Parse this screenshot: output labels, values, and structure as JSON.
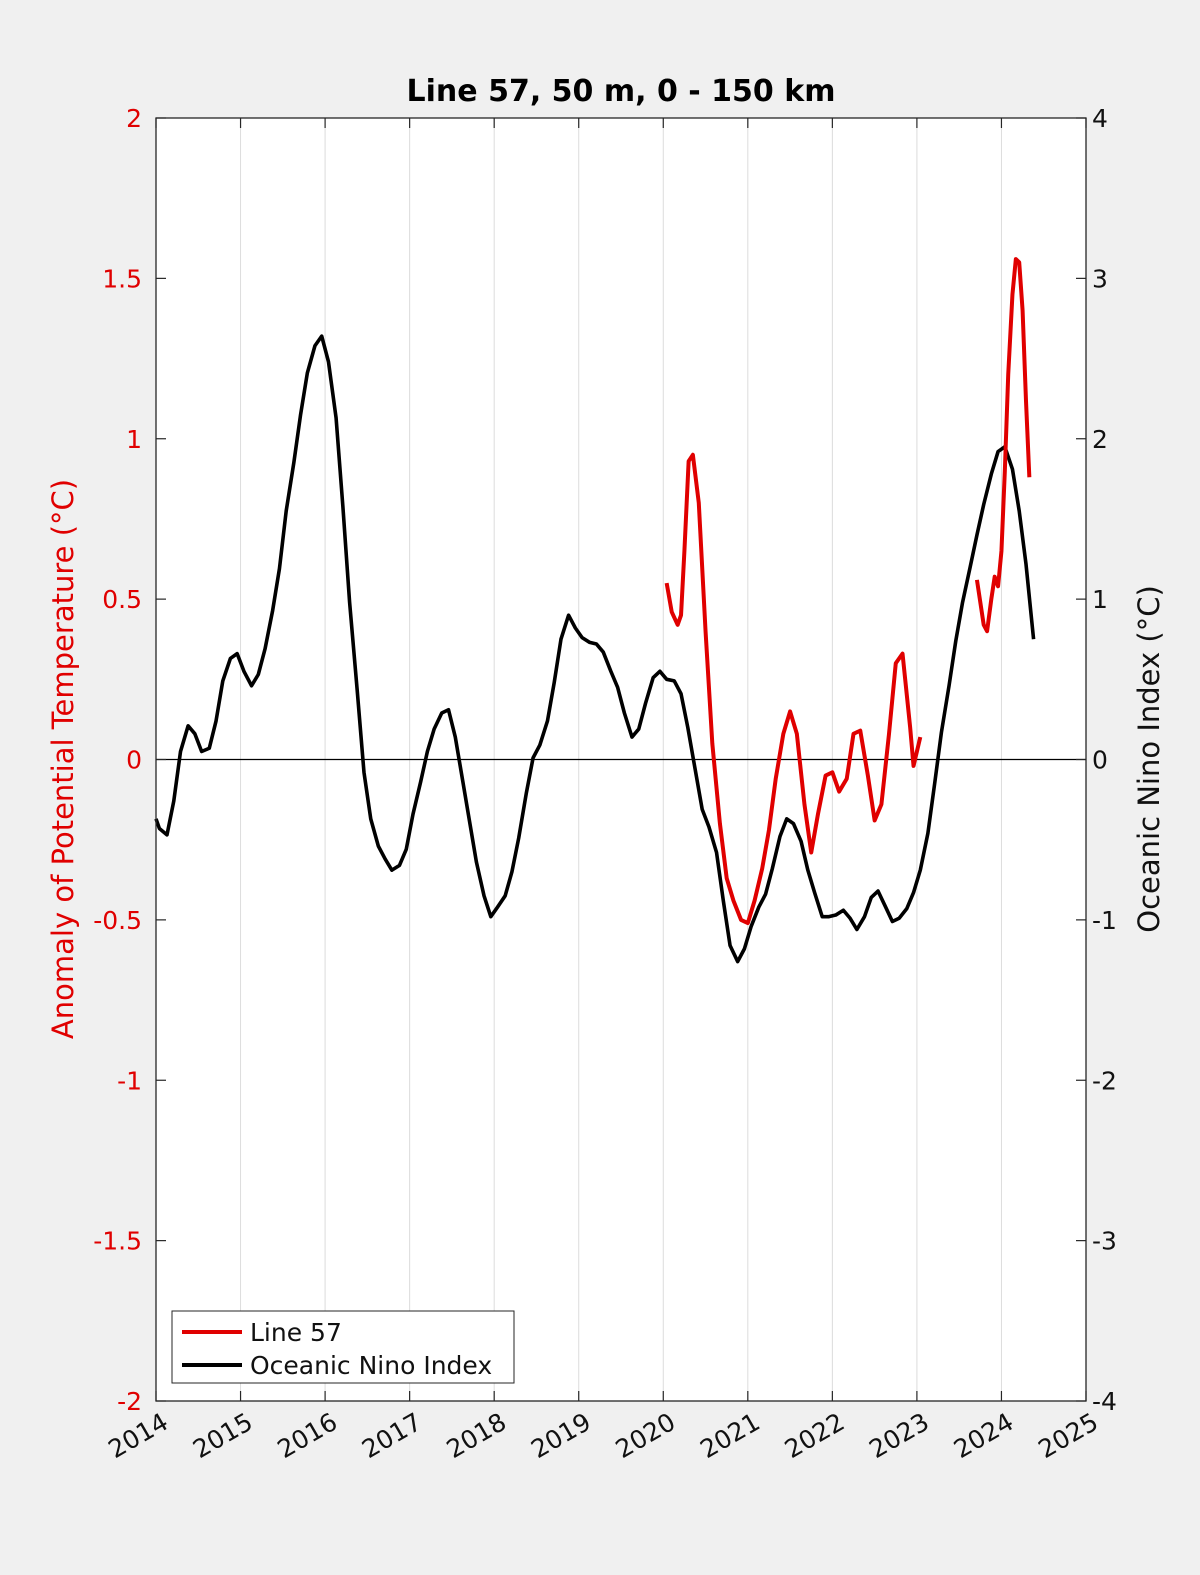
{
  "chart_data": {
    "type": "line",
    "title": "Line 57, 50 m, 0 - 150 km",
    "ylabel_left": "Anomaly of Potential Temperature (°C)",
    "ylabel_right": "Oceanic Nino Index (°C)",
    "xlim": [
      2014,
      2025
    ],
    "ylim_left": [
      -2,
      2
    ],
    "ylim_right": [
      -4,
      4
    ],
    "x_ticks": [
      "2014",
      "2015",
      "2016",
      "2017",
      "2018",
      "2019",
      "2020",
      "2021",
      "2022",
      "2023",
      "2024",
      "2025"
    ],
    "y_ticks_left": [
      "-2",
      "-1.5",
      "-1",
      "-0.5",
      "0",
      "0.5",
      "1",
      "1.5",
      "2"
    ],
    "y_ticks_right": [
      "-4",
      "-3",
      "-2",
      "-1",
      "0",
      "1",
      "2",
      "3",
      "4"
    ],
    "grid": "vertical",
    "legend_position": "bottom-left",
    "colors": {
      "line57": "#e00000",
      "oni": "#000000",
      "left_axis": "#e00000"
    },
    "series": [
      {
        "name": "Line 57",
        "axis": "left",
        "color": "#e00000",
        "segments": [
          [
            [
              2020.04,
              0.55
            ],
            [
              2020.1,
              0.46
            ],
            [
              2020.17,
              0.42
            ],
            [
              2020.21,
              0.45
            ],
            [
              2020.25,
              0.65
            ],
            [
              2020.3,
              0.93
            ],
            [
              2020.35,
              0.95
            ],
            [
              2020.42,
              0.8
            ],
            [
              2020.5,
              0.4
            ],
            [
              2020.58,
              0.05
            ],
            [
              2020.67,
              -0.2
            ],
            [
              2020.75,
              -0.37
            ],
            [
              2020.83,
              -0.44
            ],
            [
              2020.92,
              -0.5
            ],
            [
              2021.0,
              -0.51
            ],
            [
              2021.08,
              -0.44
            ],
            [
              2021.17,
              -0.34
            ],
            [
              2021.25,
              -0.22
            ],
            [
              2021.33,
              -0.06
            ],
            [
              2021.42,
              0.08
            ],
            [
              2021.5,
              0.15
            ],
            [
              2021.58,
              0.08
            ],
            [
              2021.67,
              -0.14
            ],
            [
              2021.75,
              -0.29
            ],
            [
              2021.83,
              -0.17
            ],
            [
              2021.92,
              -0.05
            ],
            [
              2022.0,
              -0.04
            ],
            [
              2022.08,
              -0.1
            ],
            [
              2022.17,
              -0.06
            ],
            [
              2022.25,
              0.08
            ],
            [
              2022.33,
              0.09
            ],
            [
              2022.42,
              -0.05
            ],
            [
              2022.5,
              -0.19
            ],
            [
              2022.58,
              -0.14
            ],
            [
              2022.67,
              0.08
            ],
            [
              2022.75,
              0.3
            ],
            [
              2022.83,
              0.33
            ],
            [
              2022.92,
              0.1
            ],
            [
              2022.96,
              -0.02
            ],
            [
              2023.04,
              0.07
            ]
          ],
          [
            [
              2023.71,
              0.56
            ],
            [
              2023.79,
              0.42
            ],
            [
              2023.83,
              0.4
            ],
            [
              2023.88,
              0.5
            ],
            [
              2023.92,
              0.57
            ],
            [
              2023.96,
              0.54
            ],
            [
              2024.0,
              0.65
            ],
            [
              2024.04,
              0.9
            ],
            [
              2024.08,
              1.2
            ],
            [
              2024.13,
              1.45
            ],
            [
              2024.17,
              1.56
            ],
            [
              2024.21,
              1.55
            ],
            [
              2024.25,
              1.4
            ],
            [
              2024.29,
              1.12
            ],
            [
              2024.33,
              0.88
            ]
          ]
        ]
      },
      {
        "name": "Oceanic Nino Index",
        "axis": "right",
        "color": "#000000",
        "segments": [
          [
            [
              2014.0,
              -0.37
            ],
            [
              2014.04,
              -0.43
            ],
            [
              2014.13,
              -0.47
            ],
            [
              2014.21,
              -0.26
            ],
            [
              2014.29,
              0.05
            ],
            [
              2014.38,
              0.21
            ],
            [
              2014.46,
              0.16
            ],
            [
              2014.54,
              0.05
            ],
            [
              2014.63,
              0.07
            ],
            [
              2014.71,
              0.24
            ],
            [
              2014.79,
              0.49
            ],
            [
              2014.88,
              0.63
            ],
            [
              2014.96,
              0.66
            ],
            [
              2015.04,
              0.55
            ],
            [
              2015.13,
              0.46
            ],
            [
              2015.21,
              0.53
            ],
            [
              2015.29,
              0.69
            ],
            [
              2015.38,
              0.93
            ],
            [
              2015.46,
              1.19
            ],
            [
              2015.54,
              1.55
            ],
            [
              2015.63,
              1.85
            ],
            [
              2015.71,
              2.15
            ],
            [
              2015.79,
              2.41
            ],
            [
              2015.88,
              2.58
            ],
            [
              2015.96,
              2.64
            ],
            [
              2016.04,
              2.48
            ],
            [
              2016.13,
              2.13
            ],
            [
              2016.21,
              1.58
            ],
            [
              2016.29,
              0.98
            ],
            [
              2016.38,
              0.43
            ],
            [
              2016.46,
              -0.08
            ],
            [
              2016.54,
              -0.37
            ],
            [
              2016.63,
              -0.54
            ],
            [
              2016.71,
              -0.62
            ],
            [
              2016.79,
              -0.69
            ],
            [
              2016.88,
              -0.66
            ],
            [
              2016.96,
              -0.56
            ],
            [
              2017.04,
              -0.34
            ],
            [
              2017.13,
              -0.14
            ],
            [
              2017.21,
              0.05
            ],
            [
              2017.29,
              0.19
            ],
            [
              2017.38,
              0.29
            ],
            [
              2017.46,
              0.31
            ],
            [
              2017.54,
              0.14
            ],
            [
              2017.63,
              -0.14
            ],
            [
              2017.71,
              -0.39
            ],
            [
              2017.79,
              -0.64
            ],
            [
              2017.88,
              -0.85
            ],
            [
              2017.96,
              -0.98
            ],
            [
              2018.04,
              -0.92
            ],
            [
              2018.13,
              -0.85
            ],
            [
              2018.21,
              -0.7
            ],
            [
              2018.29,
              -0.49
            ],
            [
              2018.38,
              -0.21
            ],
            [
              2018.46,
              0.01
            ],
            [
              2018.54,
              0.09
            ],
            [
              2018.63,
              0.24
            ],
            [
              2018.71,
              0.48
            ],
            [
              2018.79,
              0.75
            ],
            [
              2018.88,
              0.9
            ],
            [
              2018.96,
              0.82
            ],
            [
              2019.04,
              0.76
            ],
            [
              2019.13,
              0.73
            ],
            [
              2019.21,
              0.72
            ],
            [
              2019.29,
              0.67
            ],
            [
              2019.38,
              0.55
            ],
            [
              2019.46,
              0.45
            ],
            [
              2019.54,
              0.29
            ],
            [
              2019.63,
              0.14
            ],
            [
              2019.71,
              0.19
            ],
            [
              2019.79,
              0.35
            ],
            [
              2019.88,
              0.51
            ],
            [
              2019.96,
              0.55
            ],
            [
              2020.04,
              0.5
            ],
            [
              2020.13,
              0.49
            ],
            [
              2020.21,
              0.41
            ],
            [
              2020.29,
              0.2
            ],
            [
              2020.38,
              -0.07
            ],
            [
              2020.46,
              -0.31
            ],
            [
              2020.54,
              -0.42
            ],
            [
              2020.63,
              -0.58
            ],
            [
              2020.71,
              -0.88
            ],
            [
              2020.79,
              -1.16
            ],
            [
              2020.88,
              -1.26
            ],
            [
              2020.96,
              -1.18
            ],
            [
              2021.04,
              -1.04
            ],
            [
              2021.13,
              -0.92
            ],
            [
              2021.21,
              -0.84
            ],
            [
              2021.29,
              -0.68
            ],
            [
              2021.38,
              -0.48
            ],
            [
              2021.46,
              -0.37
            ],
            [
              2021.54,
              -0.4
            ],
            [
              2021.63,
              -0.51
            ],
            [
              2021.71,
              -0.69
            ],
            [
              2021.79,
              -0.83
            ],
            [
              2021.88,
              -0.98
            ],
            [
              2021.96,
              -0.98
            ],
            [
              2022.04,
              -0.97
            ],
            [
              2022.13,
              -0.94
            ],
            [
              2022.21,
              -0.99
            ],
            [
              2022.29,
              -1.06
            ],
            [
              2022.38,
              -0.98
            ],
            [
              2022.46,
              -0.86
            ],
            [
              2022.54,
              -0.82
            ],
            [
              2022.63,
              -0.92
            ],
            [
              2022.71,
              -1.01
            ],
            [
              2022.79,
              -0.99
            ],
            [
              2022.88,
              -0.93
            ],
            [
              2022.96,
              -0.83
            ],
            [
              2023.04,
              -0.69
            ],
            [
              2023.13,
              -0.46
            ],
            [
              2023.21,
              -0.15
            ],
            [
              2023.29,
              0.17
            ],
            [
              2023.38,
              0.46
            ],
            [
              2023.46,
              0.74
            ],
            [
              2023.54,
              0.98
            ],
            [
              2023.63,
              1.2
            ],
            [
              2023.71,
              1.4
            ],
            [
              2023.79,
              1.59
            ],
            [
              2023.88,
              1.78
            ],
            [
              2023.96,
              1.92
            ],
            [
              2024.04,
              1.95
            ],
            [
              2024.13,
              1.81
            ],
            [
              2024.21,
              1.55
            ],
            [
              2024.29,
              1.22
            ],
            [
              2024.38,
              0.75
            ]
          ]
        ]
      }
    ]
  }
}
